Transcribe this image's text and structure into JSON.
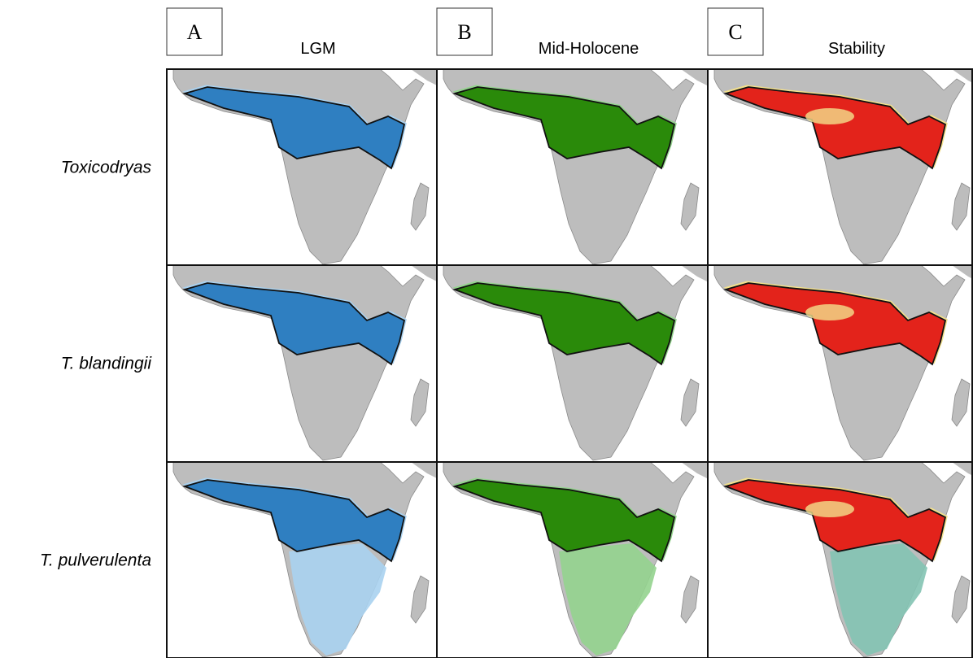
{
  "columns": [
    {
      "label": "A",
      "title": "LGM"
    },
    {
      "label": "B",
      "title": "Mid-Holocene"
    },
    {
      "label": "C",
      "title": "Stability"
    }
  ],
  "rows": [
    {
      "label": "Toxicodryas"
    },
    {
      "label": "T. blandingii"
    },
    {
      "label": "T. pulverulenta"
    }
  ]
}
